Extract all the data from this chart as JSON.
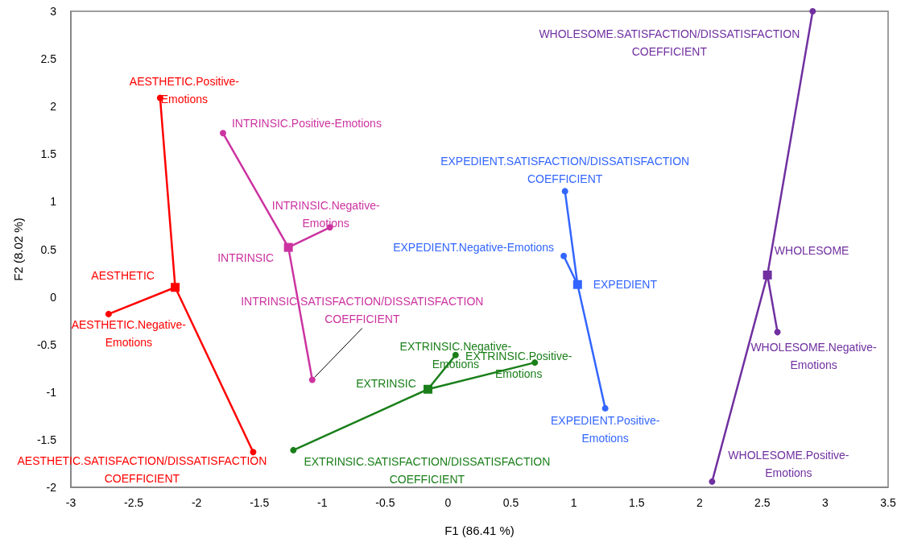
{
  "chart_data": {
    "type": "scatter",
    "xlabel": "F1 (86.41 %)",
    "ylabel": "F2 (8.02 %)",
    "xlim": [
      -3,
      3.5
    ],
    "xticks": [
      -3,
      -2.5,
      -2,
      -1.5,
      -1,
      -0.5,
      0,
      0.5,
      1,
      1.5,
      2,
      2.5,
      3,
      3.5
    ],
    "ylim": [
      -2,
      3
    ],
    "yticks": [
      -2,
      -1.5,
      -1,
      -0.5,
      0,
      0.5,
      1,
      1.5,
      2,
      2.5,
      3
    ],
    "series": [
      {
        "type": "line",
        "marker": "none",
        "color": "#ff0000",
        "x": [
          -2.17,
          -2.29
        ],
        "values": [
          0.1,
          2.09
        ]
      },
      {
        "type": "line",
        "marker": "none",
        "color": "#ff0000",
        "x": [
          -2.17,
          -2.7
        ],
        "values": [
          0.1,
          -0.18
        ]
      },
      {
        "type": "line",
        "marker": "none",
        "color": "#ff0000",
        "x": [
          -2.17,
          -1.55
        ],
        "values": [
          0.1,
          -1.63
        ]
      },
      {
        "type": "scatter",
        "marker": "circle",
        "color": "#ff0000",
        "x": [
          -2.29,
          -2.7,
          -1.55
        ],
        "values": [
          2.09,
          -0.18,
          -1.63
        ],
        "value_labels": [
          "AESTHETIC.Positive-Emotions",
          "AESTHETIC.Negative-Emotions",
          "AESTHETIC.SATISFACTION/DISSATISFACTION COEFFICIENT"
        ]
      },
      {
        "type": "scatter",
        "marker": "square",
        "color": "#ff0000",
        "x": [
          -2.17
        ],
        "values": [
          0.1
        ],
        "value_labels": [
          "AESTHETIC"
        ]
      },
      {
        "type": "line",
        "marker": "none",
        "color": "#cc33a0",
        "x": [
          -1.27,
          -1.79
        ],
        "values": [
          0.52,
          1.72
        ]
      },
      {
        "type": "line",
        "marker": "none",
        "color": "#cc33a0",
        "x": [
          -1.27,
          -0.94
        ],
        "values": [
          0.52,
          0.73
        ]
      },
      {
        "type": "line",
        "marker": "none",
        "color": "#cc33a0",
        "x": [
          -1.27,
          -1.08
        ],
        "values": [
          0.52,
          -0.87
        ]
      },
      {
        "type": "scatter",
        "marker": "circle",
        "color": "#cc33a0",
        "x": [
          -1.79,
          -0.94,
          -1.08
        ],
        "values": [
          1.72,
          0.73,
          -0.87
        ],
        "value_labels": [
          "INTRINSIC.Positive-Emotions",
          "INTRINSIC.Negative-Emotions",
          "INTRINSIC.SATISFACTION/DISSATISFACTION COEFFICIENT"
        ]
      },
      {
        "type": "scatter",
        "marker": "square",
        "color": "#cc33a0",
        "x": [
          -1.27
        ],
        "values": [
          0.52
        ],
        "value_labels": [
          "INTRINSIC"
        ]
      },
      {
        "type": "line",
        "marker": "none",
        "color": "#1a7f1a",
        "x": [
          -0.16,
          0.06
        ],
        "values": [
          -0.97,
          -0.61
        ]
      },
      {
        "type": "line",
        "marker": "none",
        "color": "#1a7f1a",
        "x": [
          -0.16,
          0.69
        ],
        "values": [
          -0.97,
          -0.69
        ]
      },
      {
        "type": "line",
        "marker": "none",
        "color": "#1a7f1a",
        "x": [
          -0.16,
          -1.23
        ],
        "values": [
          -0.97,
          -1.61
        ]
      },
      {
        "type": "scatter",
        "marker": "circle",
        "color": "#1a7f1a",
        "x": [
          0.06,
          0.69,
          -1.23
        ],
        "values": [
          -0.61,
          -0.69,
          -1.61
        ],
        "value_labels": [
          "EXTRINSIC.Negative-Emotions",
          "EXTRINSIC.Positive-Emotions",
          "EXTRINSIC.SATISFACTION/DISSATISFACTION COEFFICIENT"
        ]
      },
      {
        "type": "scatter",
        "marker": "square",
        "color": "#1a7f1a",
        "x": [
          -0.16
        ],
        "values": [
          -0.97
        ],
        "value_labels": [
          "EXTRINSIC"
        ]
      },
      {
        "type": "line",
        "marker": "none",
        "color": "#3366ff",
        "x": [
          1.03,
          0.93
        ],
        "values": [
          0.13,
          1.11
        ]
      },
      {
        "type": "line",
        "marker": "none",
        "color": "#3366ff",
        "x": [
          1.03,
          0.92
        ],
        "values": [
          0.13,
          0.43
        ]
      },
      {
        "type": "line",
        "marker": "none",
        "color": "#3366ff",
        "x": [
          1.03,
          1.25
        ],
        "values": [
          0.13,
          -1.17
        ]
      },
      {
        "type": "scatter",
        "marker": "circle",
        "color": "#3366ff",
        "x": [
          0.93,
          0.92,
          1.25
        ],
        "values": [
          1.11,
          0.43,
          -1.17
        ],
        "value_labels": [
          "EXPEDIENT.SATISFACTION/DISSATISFACTION COEFFICIENT",
          "EXPEDIENT.Negative-Emotions",
          "EXPEDIENT.Positive-Emotions"
        ]
      },
      {
        "type": "scatter",
        "marker": "square",
        "color": "#3366ff",
        "x": [
          1.03
        ],
        "values": [
          0.13
        ],
        "value_labels": [
          "EXPEDIENT"
        ]
      },
      {
        "type": "line",
        "marker": "none",
        "color": "#7030a0",
        "x": [
          2.54,
          2.9
        ],
        "values": [
          0.23,
          3.0
        ]
      },
      {
        "type": "line",
        "marker": "none",
        "color": "#7030a0",
        "x": [
          2.54,
          2.62
        ],
        "values": [
          0.23,
          -0.37
        ]
      },
      {
        "type": "line",
        "marker": "none",
        "color": "#7030a0",
        "x": [
          2.54,
          2.1
        ],
        "values": [
          0.23,
          -1.94
        ]
      },
      {
        "type": "scatter",
        "marker": "circle",
        "color": "#7030a0",
        "x": [
          2.9,
          2.62,
          2.1
        ],
        "values": [
          3.0,
          -0.37,
          -1.94
        ],
        "value_labels": [
          "WHOLESOME.SATISFACTION/DISSATISFACTION COEFFICIENT",
          "WHOLESOME.Negative-Emotions",
          "WHOLESOME.Positive-Emotions"
        ]
      },
      {
        "type": "scatter",
        "marker": "square",
        "color": "#7030a0",
        "x": [
          2.54
        ],
        "values": [
          0.23
        ],
        "value_labels": [
          "WHOLESOME"
        ]
      }
    ]
  }
}
